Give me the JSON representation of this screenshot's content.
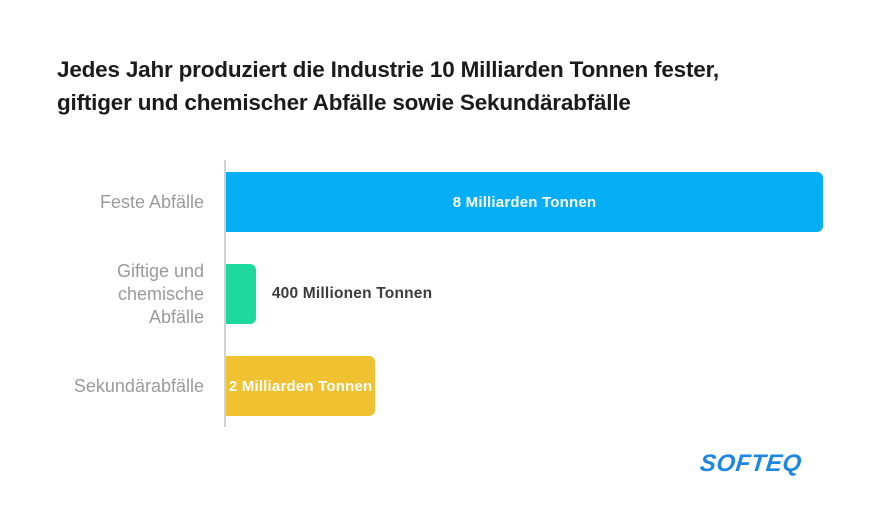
{
  "title": {
    "line1": "Jedes Jahr produziert die Industrie 10 Milliarden Tonnen fester,",
    "line2": "giftiger und chemischer Abfälle sowie Sekundärabfälle"
  },
  "chart_data": {
    "type": "bar",
    "orientation": "horizontal",
    "title": "Jedes Jahr produziert die Industrie 10 Milliarden Tonnen fester, giftiger und chemischer Abfälle sowie Sekundärabfälle",
    "categories": [
      "Feste Abfälle",
      "Giftige und chemische Abfälle",
      "Sekundärabfälle"
    ],
    "category_labels": [
      "Feste Abfälle",
      "Giftige und\nchemische\nAbfälle",
      "Sekundärabfälle"
    ],
    "values_million_tonnes": [
      8000,
      400,
      2000
    ],
    "value_labels": [
      "8 Milliarden Tonnen",
      "400 Millionen Tonnen",
      "2 Milliarden Tonnen"
    ],
    "colors": [
      "#05aef5",
      "#1ed99e",
      "#f0c232"
    ],
    "xmax_million_tonnes": 8000,
    "unit": "Tonnen",
    "axis_color": "#d2d2d2",
    "category_label_color": "#9a9a9a",
    "value_label_inside_color": "#ffffff",
    "value_label_outside_color": "#3c3c3c",
    "grid": false,
    "legend": false
  },
  "footer": {
    "logo_text": "SOFTEQ",
    "logo_color": "#1e87e5"
  }
}
